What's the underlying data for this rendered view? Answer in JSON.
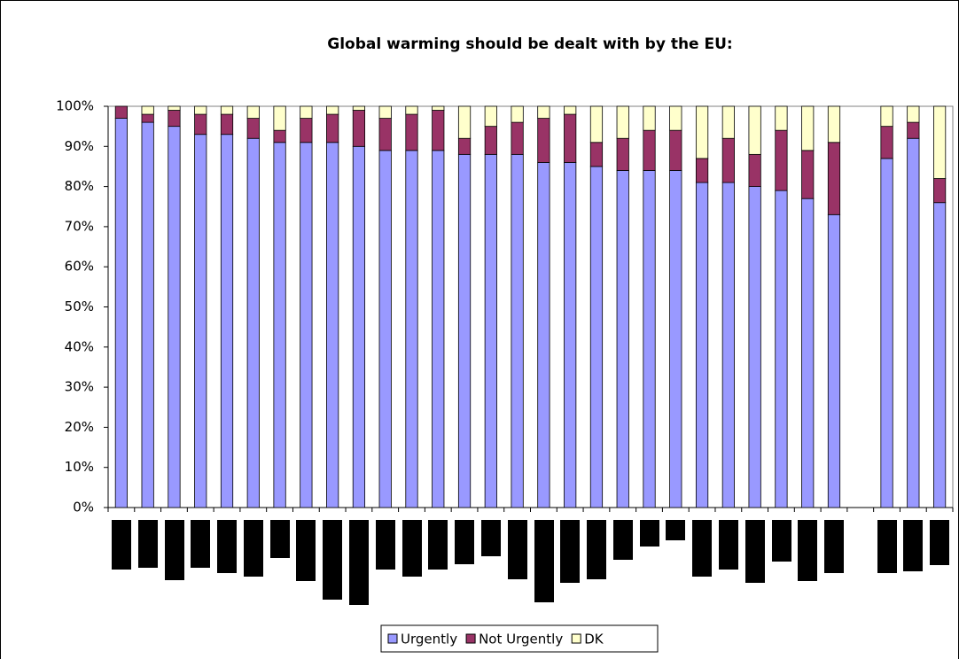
{
  "chart_data": {
    "type": "stacked_bar",
    "title": "Global warming should be dealt with by the EU:",
    "categories": [
      null,
      null,
      null,
      null,
      null,
      null,
      null,
      null,
      null,
      null,
      null,
      null,
      null,
      null,
      null,
      null,
      null,
      null,
      null,
      null,
      null,
      null,
      null,
      null,
      null,
      null,
      null,
      null,
      null,
      null,
      null,
      null
    ],
    "series": [
      {
        "name": "Urgently",
        "color": "#9999ff",
        "values": [
          97,
          96,
          95,
          93,
          93,
          92,
          91,
          91,
          91,
          90,
          89,
          89,
          89,
          88,
          88,
          88,
          86,
          86,
          85,
          84,
          84,
          84,
          81,
          81,
          80,
          79,
          77,
          73,
          null,
          87,
          92,
          76
        ]
      },
      {
        "name": "Not Urgently",
        "color": "#993366",
        "values": [
          3,
          2,
          4,
          5,
          5,
          5,
          3,
          6,
          7,
          9,
          8,
          9,
          10,
          4,
          7,
          8,
          11,
          12,
          6,
          8,
          10,
          10,
          6,
          11,
          8,
          15,
          12,
          18,
          null,
          8,
          4,
          6
        ]
      },
      {
        "name": "DK",
        "color": "#ffffcc",
        "values": [
          0,
          2,
          1,
          2,
          2,
          3,
          6,
          3,
          2,
          1,
          3,
          2,
          1,
          8,
          5,
          4,
          3,
          2,
          9,
          8,
          6,
          6,
          13,
          8,
          12,
          6,
          11,
          9,
          null,
          5,
          4,
          18
        ]
      }
    ],
    "ylim": [
      0,
      100
    ],
    "yticks": [
      {
        "value": 0,
        "label": "0%"
      },
      {
        "value": 10,
        "label": "10%"
      },
      {
        "value": 20,
        "label": "20%"
      },
      {
        "value": 30,
        "label": "30%"
      },
      {
        "value": 40,
        "label": "40%"
      },
      {
        "value": 50,
        "label": "50%"
      },
      {
        "value": 60,
        "label": "60%"
      },
      {
        "value": 70,
        "label": "70%"
      },
      {
        "value": 80,
        "label": "80%"
      },
      {
        "value": 90,
        "label": "90%"
      },
      {
        "value": 100,
        "label": "100%"
      }
    ],
    "legend": "bottom"
  }
}
